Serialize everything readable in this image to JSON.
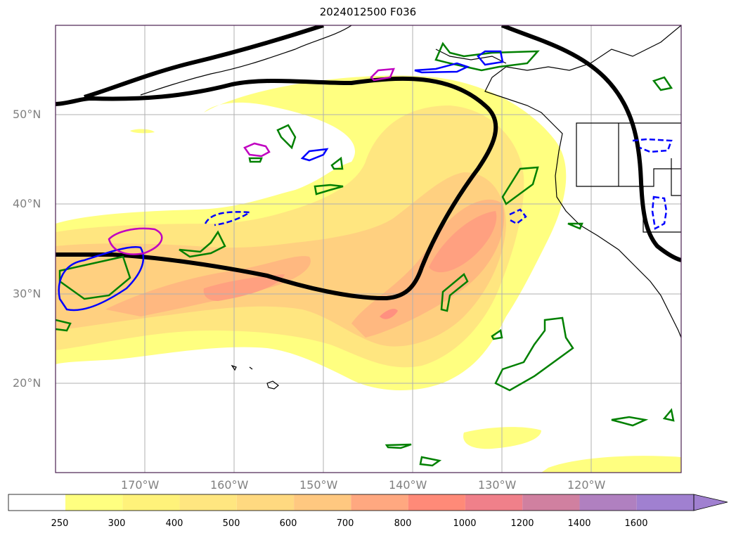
{
  "title": "2024012500 F036",
  "lat_labels": [
    "50°N",
    "40°N",
    "30°N",
    "20°N"
  ],
  "lon_labels": [
    "170°W",
    "160°W",
    "150°W",
    "140°W",
    "130°W",
    "120°W"
  ],
  "colorbar": {
    "ticks": [
      "250",
      "300",
      "400",
      "500",
      "600",
      "700",
      "800",
      "1000",
      "1200",
      "1400",
      "1600"
    ],
    "colors": [
      "#ffffff",
      "#ffff80",
      "#fff27a",
      "#ffe680",
      "#ffd980",
      "#ffc880",
      "#ffa880",
      "#ff8a78",
      "#f0808a",
      "#d080a0",
      "#b080c0",
      "#a080d0"
    ]
  }
}
